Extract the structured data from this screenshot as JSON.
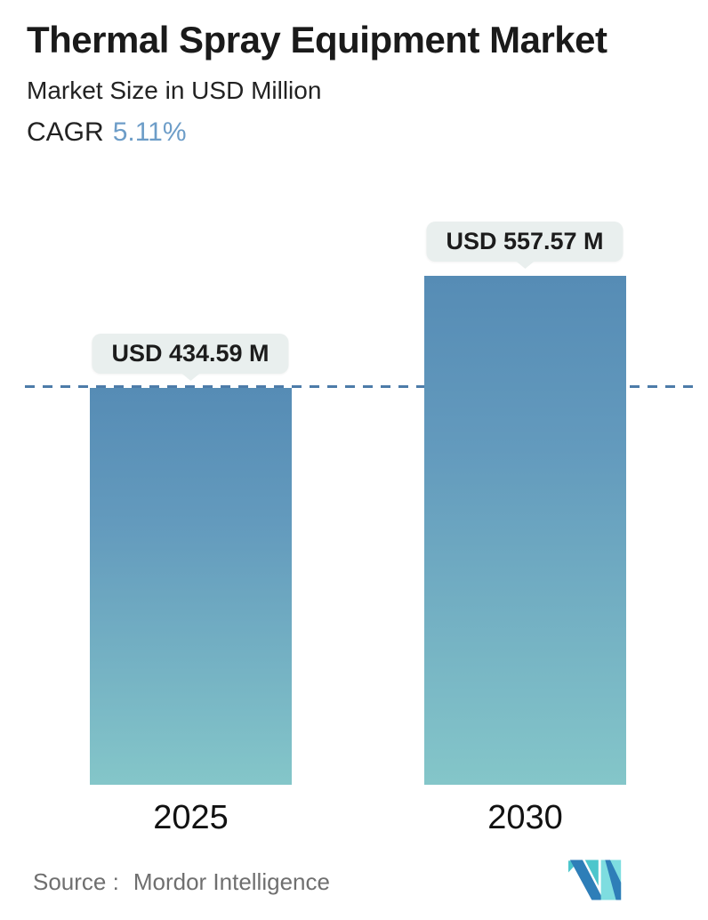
{
  "header": {
    "title": "Thermal Spray Equipment Market",
    "subtitle": "Market Size in USD Million",
    "cagr_label": "CAGR",
    "cagr_value": "5.11%"
  },
  "chart_data": {
    "type": "bar",
    "title": "Thermal Spray Equipment Market",
    "subtitle": "Market Size in USD Million",
    "unit": "USD Million",
    "cagr_percent": 5.11,
    "categories": [
      "2025",
      "2030"
    ],
    "values": [
      434.59,
      557.57
    ],
    "value_labels": [
      "USD 434.59 M",
      "USD 557.57 M"
    ],
    "ylim": [
      0,
      580
    ],
    "grid": "off",
    "legend": "off",
    "reference_line": {
      "y": 434.59,
      "style": "dashed",
      "color": "#4d7ca9"
    },
    "bar_gradient": {
      "top": "#568cb5",
      "bottom": "#84c6c9"
    }
  },
  "footer": {
    "source_label": "Source :",
    "source_value": "Mordor Intelligence",
    "logo_name": "mordor-intelligence-logo"
  },
  "colors": {
    "accent_blue": "#6d9dc8",
    "dashed_line": "#4d7ca9",
    "bubble_bg": "#e9efee",
    "text_dark": "#1c1c1c",
    "text_gray": "#6f6f6f",
    "logo_blue": "#2e7eb8",
    "logo_teal": "#4cc6cc",
    "logo_teal_light": "#7edde0"
  }
}
